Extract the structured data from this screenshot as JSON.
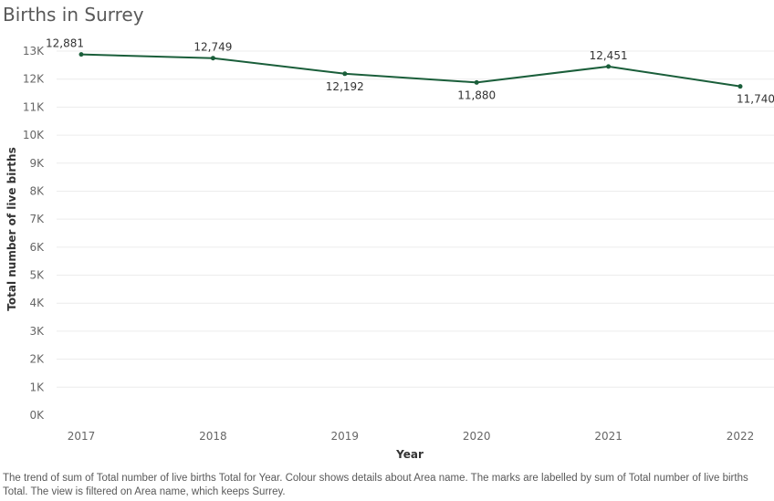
{
  "title": "Births in Surrey",
  "caption": "The trend of sum of Total number of live births  Total for Year.  Colour shows details about Area name.  The marks are labelled by sum of Total number of live births  Total. The view is filtered on Area name, which keeps Surrey.",
  "chart_data": {
    "type": "line",
    "xlabel": "Year",
    "ylabel": "Total number of live births",
    "categories": [
      "2017",
      "2018",
      "2019",
      "2020",
      "2021",
      "2022"
    ],
    "series": [
      {
        "values": [
          12881,
          12749,
          12192,
          11880,
          12451,
          11740
        ],
        "labels": [
          "12,881",
          "12,749",
          "12,192",
          "11,880",
          "12,451",
          "11,740"
        ],
        "color": "#1a5e3a"
      }
    ],
    "ylim": [
      0,
      13000
    ],
    "yticks": [
      0,
      1000,
      2000,
      3000,
      4000,
      5000,
      6000,
      7000,
      8000,
      9000,
      10000,
      11000,
      12000,
      13000
    ],
    "ytick_labels": [
      "0K",
      "1K",
      "2K",
      "3K",
      "4K",
      "5K",
      "6K",
      "7K",
      "8K",
      "9K",
      "10K",
      "11K",
      "12K",
      "13K"
    ],
    "label_positions": [
      "above",
      "above",
      "below",
      "below",
      "above",
      "below"
    ],
    "grid": true,
    "gridline_color": "#ececec"
  }
}
